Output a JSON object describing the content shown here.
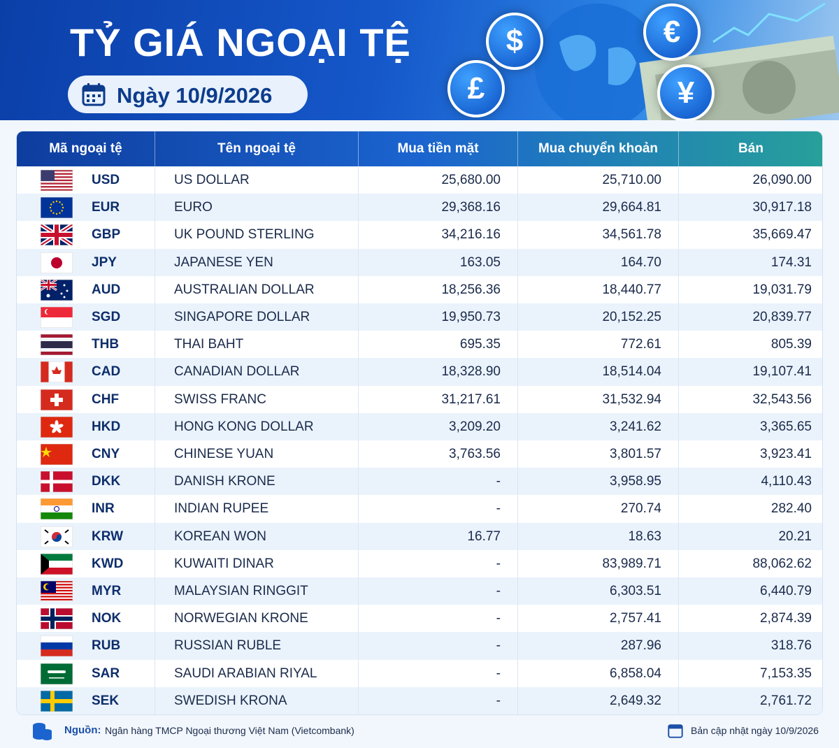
{
  "header": {
    "title": "TỶ GIÁ NGOẠI TỆ",
    "date": "Ngày 10/9/2026",
    "symbols": [
      "$",
      "€",
      "£",
      "¥"
    ]
  },
  "table": {
    "columns": [
      "Mã ngoại tệ",
      "Tên ngoại tệ",
      "Mua tiền mặt",
      "Mua chuyển khoản",
      "Bán"
    ],
    "rows": [
      [
        "USD",
        "US DOLLAR",
        "25,680.00",
        "25,710.00",
        "26,090.00"
      ],
      [
        "EUR",
        "EURO",
        "29,368.16",
        "29,664.81",
        "30,917.18"
      ],
      [
        "GBP",
        "UK POUND STERLING",
        "34,216.16",
        "34,561.78",
        "35,669.47"
      ],
      [
        "JPY",
        "JAPANESE YEN",
        "163.05",
        "164.70",
        "174.31"
      ],
      [
        "AUD",
        "AUSTRALIAN DOLLAR",
        "18,256.36",
        "18,440.77",
        "19,031.79"
      ],
      [
        "SGD",
        "SINGAPORE DOLLAR",
        "19,950.73",
        "20,152.25",
        "20,839.77"
      ],
      [
        "THB",
        "THAI BAHT",
        "695.35",
        "772.61",
        "805.39"
      ],
      [
        "CAD",
        "CANADIAN DOLLAR",
        "18,328.90",
        "18,514.04",
        "19,107.41"
      ],
      [
        "CHF",
        "SWISS FRANC",
        "31,217.61",
        "31,532.94",
        "32,543.56"
      ],
      [
        "HKD",
        "HONG KONG DOLLAR",
        "3,209.20",
        "3,241.62",
        "3,365.65"
      ],
      [
        "CNY",
        "CHINESE YUAN",
        "3,763.56",
        "3,801.57",
        "3,923.41"
      ],
      [
        "DKK",
        "DANISH KRONE",
        "-",
        "3,958.95",
        "4,110.43"
      ],
      [
        "INR",
        "INDIAN RUPEE",
        "-",
        "270.74",
        "282.40"
      ],
      [
        "KRW",
        "KOREAN WON",
        "16.77",
        "18.63",
        "20.21"
      ],
      [
        "KWD",
        "KUWAITI DINAR",
        "-",
        "83,989.71",
        "88,062.62"
      ],
      [
        "MYR",
        "MALAYSIAN RINGGIT",
        "-",
        "6,303.51",
        "6,440.79"
      ],
      [
        "NOK",
        "NORWEGIAN KRONE",
        "-",
        "2,757.41",
        "2,874.39"
      ],
      [
        "RUB",
        "RUSSIAN RUBLE",
        "-",
        "287.96",
        "318.76"
      ],
      [
        "SAR",
        "SAUDI ARABIAN RIYAL",
        "-",
        "6,858.04",
        "7,153.35"
      ],
      [
        "SEK",
        "SWEDISH KRONA",
        "-",
        "2,649.32",
        "2,761.72"
      ]
    ]
  },
  "footer": {
    "source_label": "Nguồn:",
    "source": "Ngân hàng TMCP Ngoại thương Việt Nam (Vietcombank)",
    "updated": "Bản cập nhật ngày 10/9/2026"
  }
}
